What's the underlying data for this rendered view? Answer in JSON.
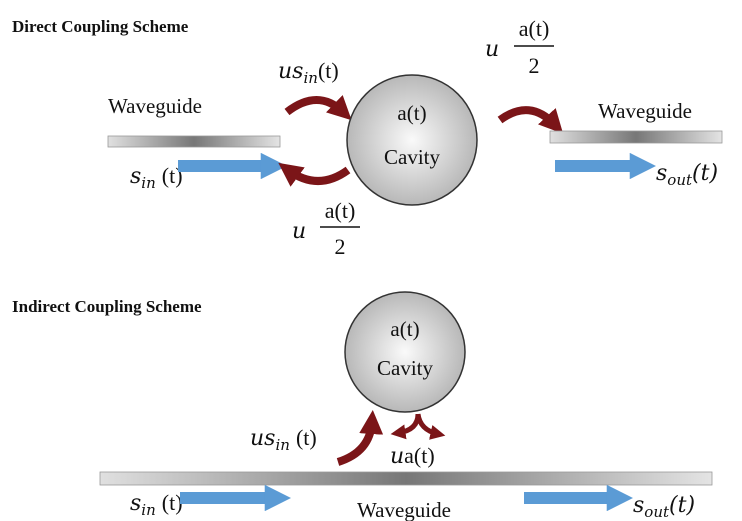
{
  "direct": {
    "title": "Direct Coupling Scheme",
    "input_waveguide": "Waveguide",
    "output_waveguide": "Waveguide",
    "cavity": {
      "mode": "a(t)",
      "label": "Cavity"
    },
    "input_signal": {
      "symbol": "s",
      "sub": "in",
      "arg": "(t)"
    },
    "output_signal": {
      "symbol": "s",
      "sub": "out",
      "arg": "(t)"
    },
    "coupling_in": {
      "symbol": "us",
      "sub": "in",
      "arg": "(t)"
    },
    "coupling_back": {
      "factor": "u",
      "numerator": "a(t)",
      "denominator": "2"
    },
    "coupling_out": {
      "factor": "u",
      "numerator": "a(t)",
      "denominator": "2"
    }
  },
  "indirect": {
    "title": "Indirect Coupling Scheme",
    "cavity": {
      "mode": "a(t)",
      "label": "Cavity"
    },
    "coupling_in": {
      "symbol": "us",
      "sub": "in",
      "arg": "(t)"
    },
    "coupling_out": {
      "factor": "u",
      "arg": "a(t)"
    },
    "waveguide": "Waveguide",
    "input_signal": {
      "symbol": "s",
      "sub": "in",
      "arg": "(t)"
    },
    "output_signal": {
      "symbol": "s",
      "sub": "out",
      "arg": "(t)"
    }
  }
}
